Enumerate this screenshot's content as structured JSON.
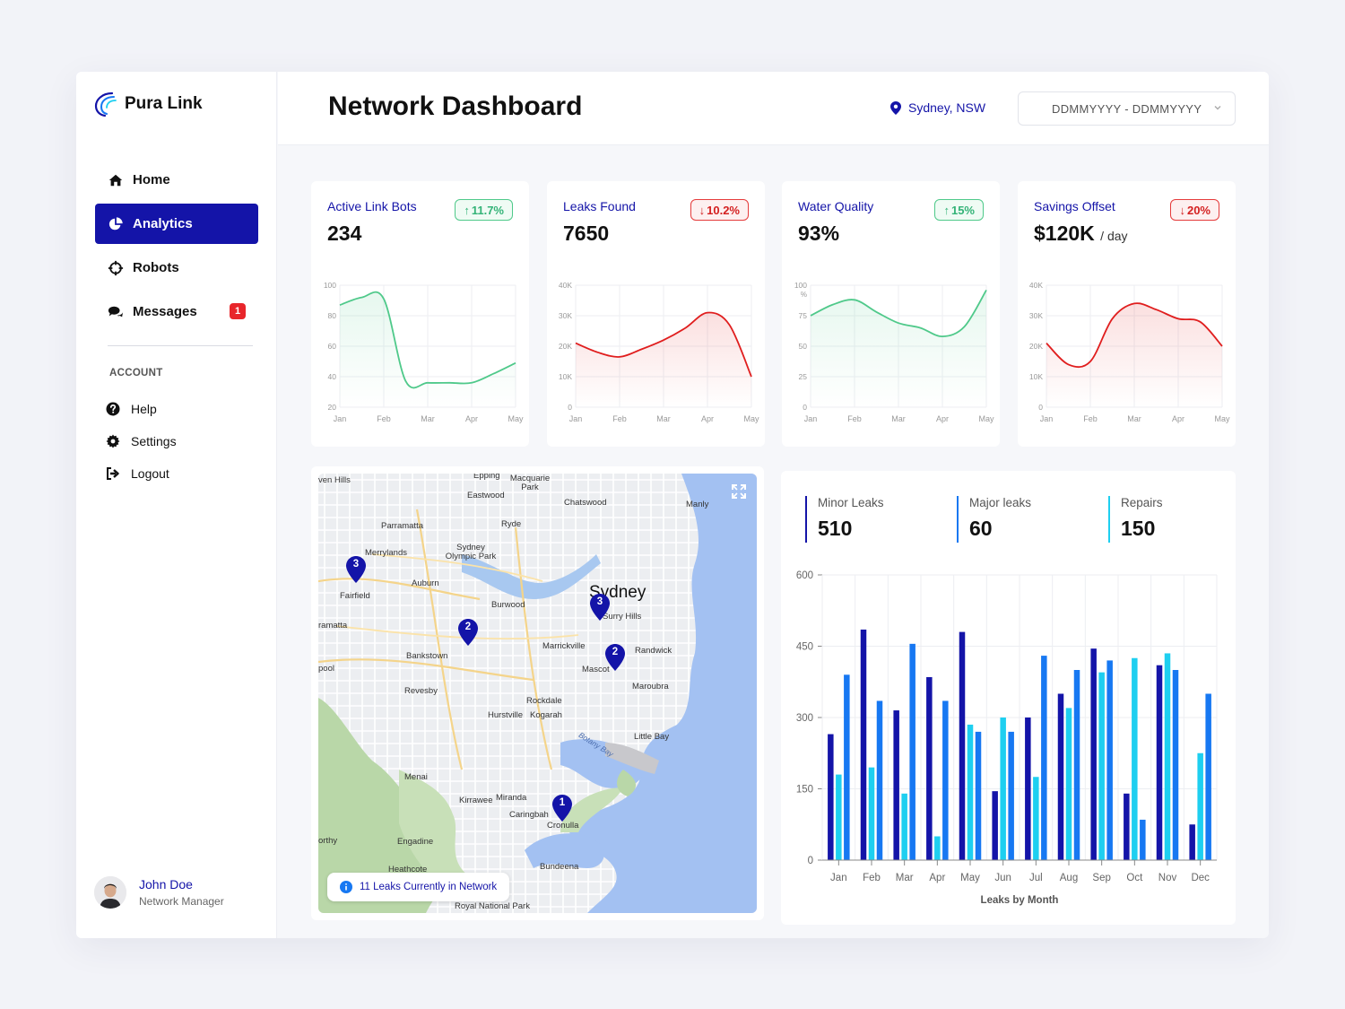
{
  "brand": {
    "name": "Pura Link"
  },
  "nav": [
    {
      "label": "Home",
      "icon": "home-icon",
      "active": false
    },
    {
      "label": "Analytics",
      "icon": "pie-chart-icon",
      "active": true
    },
    {
      "label": "Robots",
      "icon": "crosshair-icon",
      "active": false
    },
    {
      "label": "Messages",
      "icon": "chat-icon",
      "active": false,
      "badge": "1"
    }
  ],
  "account": {
    "heading": "ACCOUNT",
    "items": [
      {
        "label": "Help",
        "icon": "help-icon"
      },
      {
        "label": "Settings",
        "icon": "gear-icon"
      },
      {
        "label": "Logout",
        "icon": "logout-icon"
      }
    ]
  },
  "user": {
    "name": "John Doe",
    "role": "Network Manager"
  },
  "header": {
    "title": "Network Dashboard",
    "location": "Sydney, NSW",
    "date_range_placeholder": "DDMMYYYY - DDMMYYYY"
  },
  "kpis": [
    {
      "label": "Active Link Bots",
      "value": "234",
      "unit": "",
      "change": "11.7%",
      "direction": "up",
      "color": "#4fc98a"
    },
    {
      "label": "Leaks Found",
      "value": "7650",
      "unit": "",
      "change": "10.2%",
      "direction": "down",
      "color": "#e01e1e"
    },
    {
      "label": "Water Quality",
      "value": "93%",
      "unit": "",
      "change": "15%",
      "direction": "up",
      "color": "#4fc98a"
    },
    {
      "label": "Savings Offset",
      "value": "$120K",
      "unit": "/ day",
      "change": "20%",
      "direction": "down",
      "color": "#e01e1e"
    }
  ],
  "chart_data": [
    {
      "type": "area",
      "title": "Active Link Bots",
      "categories": [
        "Jan",
        "Feb",
        "Mar",
        "Apr",
        "May"
      ],
      "x": [
        0,
        0.5,
        1,
        1.5,
        2,
        2.5,
        3,
        3.5,
        4
      ],
      "values": [
        87,
        92,
        91,
        37,
        36,
        36,
        36,
        42,
        49
      ],
      "ylim": [
        20,
        100
      ],
      "yticks": [
        "20",
        "40",
        "60",
        "80",
        "100"
      ],
      "color": "#4fc98a"
    },
    {
      "type": "area",
      "title": "Leaks Found",
      "categories": [
        "Jan",
        "Feb",
        "Mar",
        "Apr",
        "May"
      ],
      "x": [
        0,
        0.5,
        1,
        1.5,
        2,
        2.5,
        3,
        3.5,
        4
      ],
      "values": [
        21000,
        18000,
        16500,
        19000,
        22000,
        26000,
        31000,
        27000,
        10000
      ],
      "ylim": [
        0,
        40000
      ],
      "yticks": [
        "0",
        "10K",
        "20K",
        "30K",
        "40K"
      ],
      "color": "#e01e1e"
    },
    {
      "type": "area",
      "title": "Water Quality",
      "categories": [
        "Jan",
        "Feb",
        "Mar",
        "Apr",
        "May"
      ],
      "x": [
        0,
        0.5,
        1,
        1.5,
        2,
        2.5,
        3,
        3.5,
        4
      ],
      "values": [
        75,
        84,
        88,
        78,
        69,
        65,
        58,
        66,
        96
      ],
      "ylim": [
        0,
        100
      ],
      "yticks": [
        "0",
        "25",
        "50",
        "75",
        "100"
      ],
      "ylabel": "%",
      "color": "#4fc98a"
    },
    {
      "type": "area",
      "title": "Savings Offset",
      "categories": [
        "Jan",
        "Feb",
        "Mar",
        "Apr",
        "May"
      ],
      "x": [
        0,
        0.5,
        1,
        1.5,
        2,
        2.5,
        3,
        3.5,
        4
      ],
      "values": [
        21000,
        14000,
        15000,
        29000,
        34000,
        32000,
        29000,
        28000,
        20000
      ],
      "ylim": [
        0,
        40000
      ],
      "yticks": [
        "0",
        "10K",
        "20K",
        "30K",
        "40K"
      ],
      "color": "#e01e1e"
    },
    {
      "type": "bar",
      "title": "",
      "xlabel": "Leaks by Month",
      "categories": [
        "Jan",
        "Feb",
        "Mar",
        "Apr",
        "May",
        "Jun",
        "Jul",
        "Aug",
        "Sep",
        "Oct",
        "Nov",
        "Dec"
      ],
      "series": [
        {
          "name": "Minor Leaks",
          "color": "#1414a8",
          "values": [
            265,
            485,
            315,
            385,
            480,
            145,
            300,
            350,
            445,
            140,
            410,
            75
          ]
        },
        {
          "name": "Repairs",
          "color": "#1ecff0",
          "values": [
            180,
            195,
            140,
            50,
            285,
            300,
            175,
            320,
            395,
            425,
            435,
            225
          ]
        },
        {
          "name": "Major leaks",
          "color": "#1778f2",
          "values": [
            390,
            335,
            455,
            335,
            270,
            270,
            430,
            400,
            420,
            85,
            400,
            350
          ]
        }
      ],
      "ylim": [
        0,
        600
      ],
      "yticks": [
        "0",
        "150",
        "300",
        "450",
        "600"
      ],
      "grid": true
    }
  ],
  "stats": [
    {
      "label": "Minor Leaks",
      "value": "510",
      "color": "#1414a8"
    },
    {
      "label": "Major leaks",
      "value": "60",
      "color": "#1778f2"
    },
    {
      "label": "Repairs",
      "value": "150",
      "color": "#1ecff0"
    }
  ],
  "map": {
    "chip_text": "11 Leaks Currently in Network",
    "pins": [
      "3",
      "2",
      "3",
      "2",
      "1"
    ],
    "labels": [
      "Epping",
      "Macquarie Park",
      "ven Hills",
      "Eastwood",
      "Chatswood",
      "Parramatta",
      "Ryde",
      "Manly",
      "Sydney Olympic Park",
      "Merrylands",
      "Auburn",
      "Sydney",
      "Fairfield",
      "Burwood",
      "Surry Hills",
      "ramatta",
      "Marrickville",
      "Randwick",
      "Bankstown",
      "Mascot",
      "Revesby",
      "Maroubra",
      "Rockdale",
      "Hurstville",
      "Kogarah",
      "Botany Bay",
      "Little Bay",
      "Menai",
      "Kirrawee",
      "Miranda",
      "Caringbah",
      "Cronulla",
      "Engadine",
      "Heathcote",
      "Bundeena",
      "Royal National Park",
      "orthy",
      "pool"
    ]
  }
}
